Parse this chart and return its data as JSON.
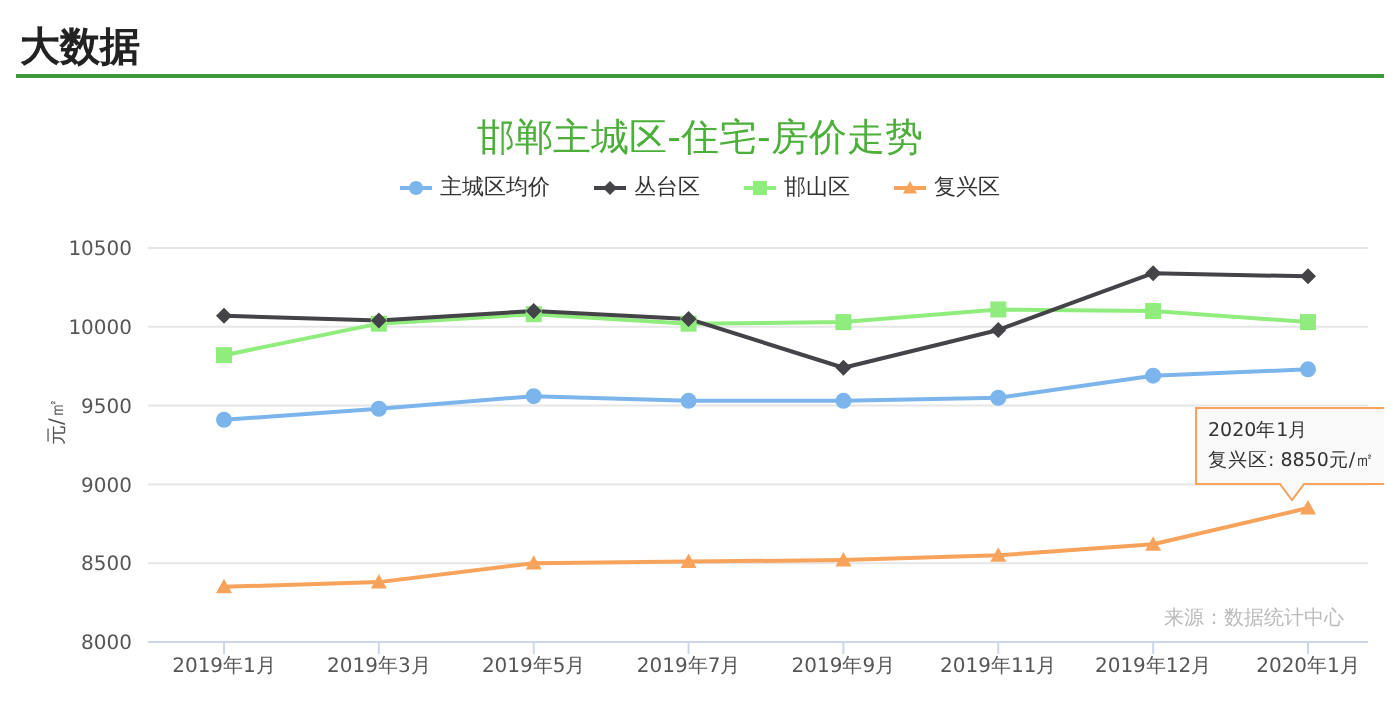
{
  "chart_data": {
    "type": "line",
    "title": "大数据",
    "subtitle": "邯郸主城区-住宅-房价走势",
    "ylabel": "元/㎡",
    "categories": [
      "2019年1月",
      "2019年3月",
      "2019年5月",
      "2019年7月",
      "2019年9月",
      "2019年11月",
      "2019年12月",
      "2020年1月"
    ],
    "series": [
      {
        "name": "主城区均价",
        "color": "#7cb5ec",
        "marker": "circle",
        "values": [
          9410,
          9480,
          9560,
          9530,
          9530,
          9550,
          9690,
          9730
        ]
      },
      {
        "name": "丛台区",
        "color": "#434348",
        "marker": "diamond",
        "values": [
          10070,
          10040,
          10100,
          10050,
          9740,
          9980,
          10340,
          10320
        ]
      },
      {
        "name": "邯山区",
        "color": "#90ed7d",
        "marker": "square",
        "values": [
          9820,
          10020,
          10080,
          10020,
          10030,
          10110,
          10100,
          10030
        ]
      },
      {
        "name": "复兴区",
        "color": "#f7a35c",
        "marker": "triangle",
        "values": [
          8350,
          8380,
          8500,
          8510,
          8520,
          8550,
          8620,
          8850
        ]
      }
    ],
    "ylim": [
      8000,
      10500
    ],
    "yticks": [
      8000,
      8500,
      9000,
      9500,
      10000,
      10500
    ],
    "grid": "y",
    "legend": "top",
    "annotations": [
      {
        "text": "复兴区: 8850元/㎡",
        "x": "2020年1月",
        "y": 8850
      },
      "来源：数据统计中心"
    ]
  }
}
